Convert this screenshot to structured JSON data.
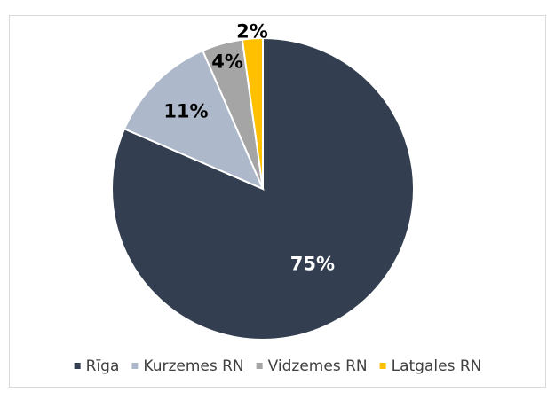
{
  "chart_data": {
    "type": "pie",
    "categories": [
      "Rīga",
      "Kurzemes RN",
      "Vidzemes RN",
      "Latgales RN"
    ],
    "values": [
      75,
      11,
      4,
      2
    ],
    "value_labels": [
      "75%",
      "11%",
      "4%",
      "2%"
    ],
    "colors": [
      "#333f50",
      "#adb9ca",
      "#a5a5a5",
      "#ffc000"
    ],
    "legend": "bottom"
  }
}
